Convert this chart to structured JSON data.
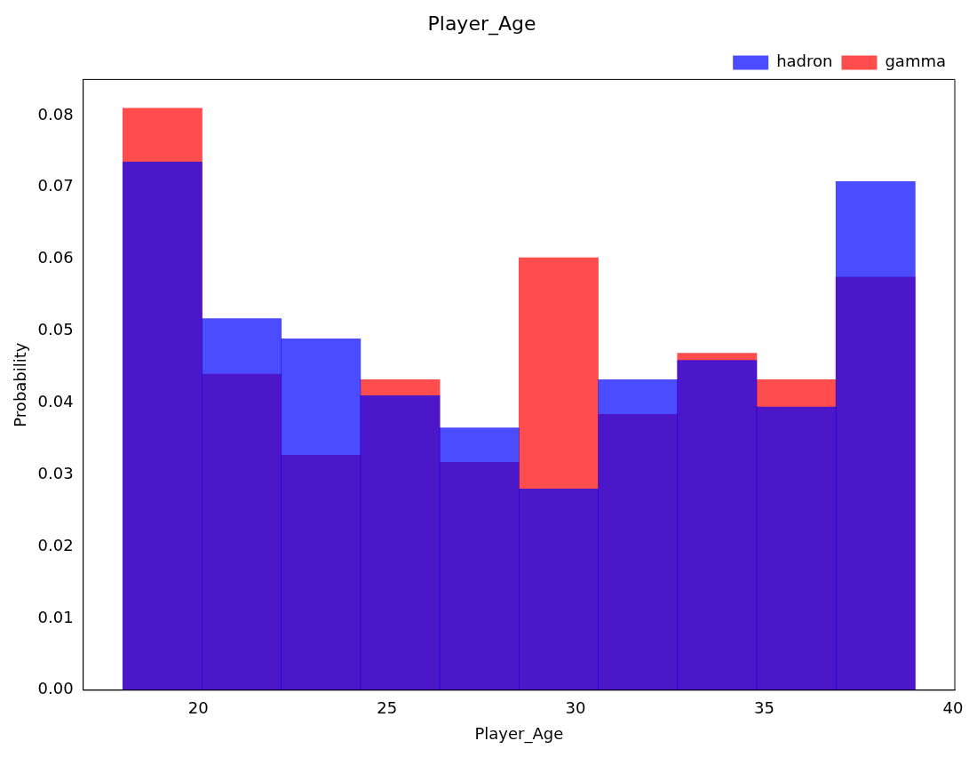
{
  "chart_data": {
    "type": "histogram",
    "title": "Player_Age",
    "xlabel": "Player_Age",
    "ylabel": "Probability",
    "bins": [
      18,
      20.1,
      22.2,
      24.3,
      26.4,
      28.5,
      30.6,
      32.7,
      34.8,
      36.9,
      39
    ],
    "series": [
      {
        "name": "gamma",
        "color": "#ff0000",
        "values": [
          0.081,
          0.044,
          0.0327,
          0.0432,
          0.0317,
          0.0602,
          0.0384,
          0.0469,
          0.0432,
          0.0575
        ]
      },
      {
        "name": "hadron",
        "color": "#0000ff",
        "values": [
          0.0735,
          0.0517,
          0.0489,
          0.041,
          0.0365,
          0.028,
          0.0432,
          0.0459,
          0.0394,
          0.0708
        ]
      }
    ],
    "xlim": [
      16.95,
      40.05
    ],
    "xticks": [
      20,
      25,
      30,
      35,
      40
    ],
    "ylim": [
      0,
      0.085
    ],
    "yticks": [
      {
        "value": 0,
        "label": "0.00"
      },
      {
        "value": 0.01,
        "label": "0.01"
      },
      {
        "value": 0.02,
        "label": "0.02"
      },
      {
        "value": 0.03,
        "label": "0.03"
      },
      {
        "value": 0.04,
        "label": "0.04"
      },
      {
        "value": 0.05,
        "label": "0.05"
      },
      {
        "value": 0.06,
        "label": "0.06"
      },
      {
        "value": 0.07,
        "label": "0.07"
      },
      {
        "value": 0.08,
        "label": "0.08"
      }
    ],
    "legend": "top right",
    "grid": false
  }
}
